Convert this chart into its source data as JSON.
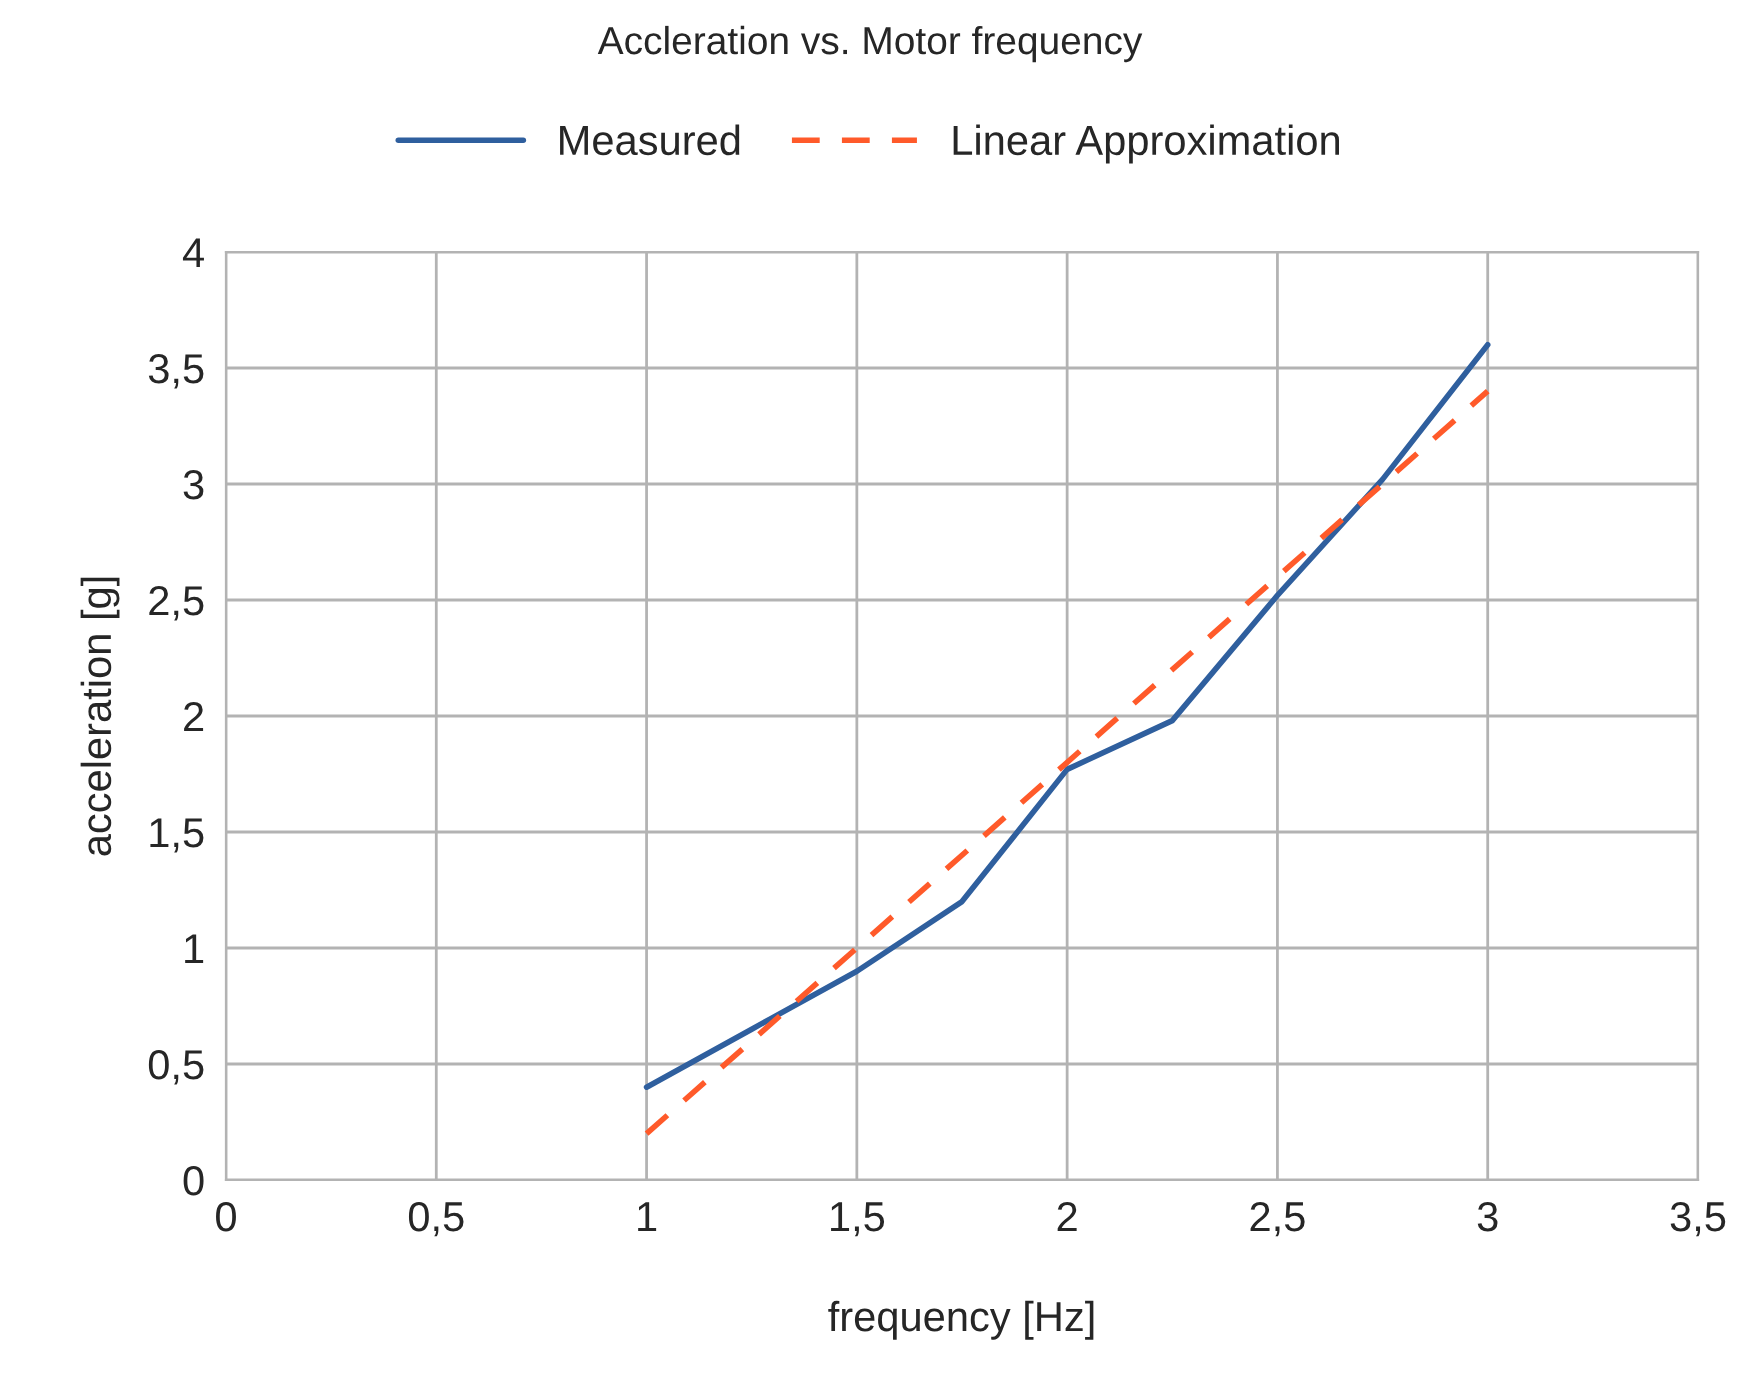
{
  "chart_data": {
    "type": "line",
    "title": "Accleration vs. Motor frequency",
    "xlabel": "frequency [Hz]",
    "ylabel": "acceleration [g]",
    "series": [
      {
        "name": "Measured",
        "color": "#2f5f9e",
        "line_style": "solid",
        "x": [
          1,
          1.25,
          1.5,
          1.75,
          2,
          2.25,
          2.5,
          2.75,
          3
        ],
        "values": [
          0.4,
          0.65,
          0.9,
          1.2,
          1.77,
          1.98,
          2.52,
          3.02,
          3.6
        ]
      },
      {
        "name": "Linear Approximation",
        "color": "#ff5a2a",
        "line_style": "dashed",
        "x": [
          1,
          3
        ],
        "values": [
          0.2,
          3.4
        ]
      }
    ],
    "xlim": [
      0,
      3.5
    ],
    "ylim": [
      0,
      4
    ],
    "xticks": [
      0,
      {
        "value": 0.5,
        "label": "0,5"
      },
      1,
      {
        "value": 1.5,
        "label": "1,5"
      },
      2,
      {
        "value": 2.5,
        "label": "2,5"
      },
      3,
      {
        "value": 3.5,
        "label": "3,5"
      }
    ],
    "yticks": [
      0,
      {
        "value": 0.5,
        "label": "0,5"
      },
      1,
      {
        "value": 1.5,
        "label": "1,5"
      },
      2,
      {
        "value": 2.5,
        "label": "2,5"
      },
      3,
      {
        "value": 3.5,
        "label": "3,5"
      },
      4
    ],
    "grid": true,
    "legend": "top",
    "marker": "none"
  }
}
